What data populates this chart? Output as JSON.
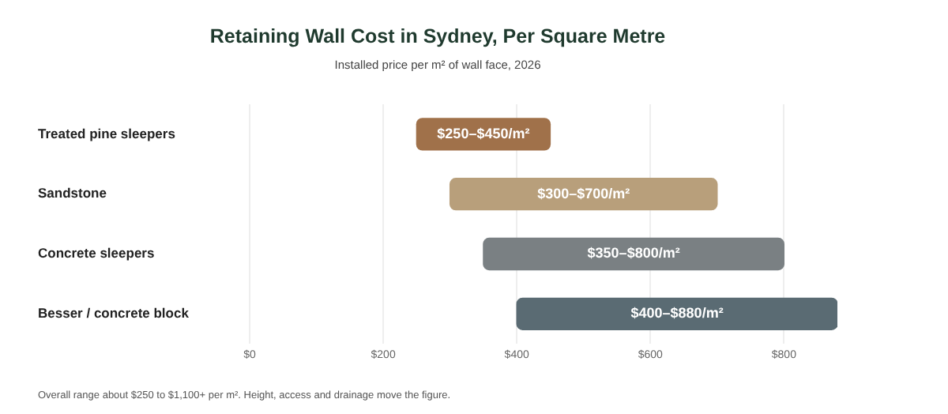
{
  "chart_data": {
    "type": "bar",
    "orientation": "horizontal",
    "title": "Retaining Wall Cost in Sydney, Per Square Metre",
    "subtitle": "Installed price per m² of wall face, 2026",
    "categories": [
      "Treated pine sleepers",
      "Sandstone",
      "Concrete sleepers",
      "Besser / concrete block"
    ],
    "base": [
      250,
      300,
      350,
      400
    ],
    "values": [
      200,
      400,
      450,
      480
    ],
    "colors": [
      "#a0714a",
      "#b89f7b",
      "#7a8083",
      "#5a6b73"
    ],
    "value_labels": [
      "$250–$450/m²",
      "$300–$700/m²",
      "$350–$800/m²",
      "$400–$880/m²"
    ],
    "xlim": [
      0,
      880
    ],
    "xticks": [
      {
        "value": 0,
        "label": "$0"
      },
      {
        "value": 200,
        "label": "$200"
      },
      {
        "value": 400,
        "label": "$400"
      },
      {
        "value": 600,
        "label": "$600"
      },
      {
        "value": 800,
        "label": "$800"
      }
    ],
    "grid": "x",
    "legend": false,
    "annotations": [
      "Overall range about $250 to $1,100+ per m². Height, access and drainage move the figure."
    ]
  }
}
